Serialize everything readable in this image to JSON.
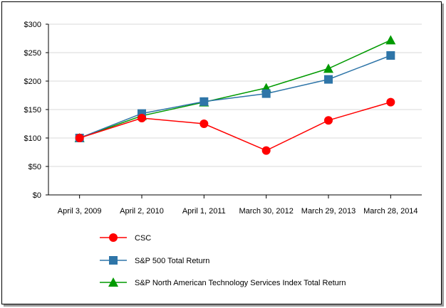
{
  "chart_data": {
    "type": "line",
    "categories": [
      "April 3, 2009",
      "April 2, 2010",
      "April 1, 2011",
      "March 30, 2012",
      "March 29, 2013",
      "March 28, 2014"
    ],
    "y_ticks": [
      "$0",
      "$50",
      "$100",
      "$150",
      "$200",
      "$250",
      "$300"
    ],
    "ylim": [
      0,
      300
    ],
    "grid": true,
    "legend_position": "bottom-left",
    "series": [
      {
        "name": "CSC",
        "marker": "circle",
        "color": "#ff0000",
        "values": [
          100,
          135,
          125,
          78,
          131,
          163
        ]
      },
      {
        "name": "S&P 500 Total Return",
        "marker": "square",
        "color": "#2e75a8",
        "values": [
          100,
          143,
          164,
          178,
          203,
          245
        ]
      },
      {
        "name": "S&P North American Technology Services Index Total Return",
        "marker": "triangle",
        "color": "#009a00",
        "values": [
          100,
          139,
          163,
          188,
          222,
          272
        ]
      }
    ]
  }
}
